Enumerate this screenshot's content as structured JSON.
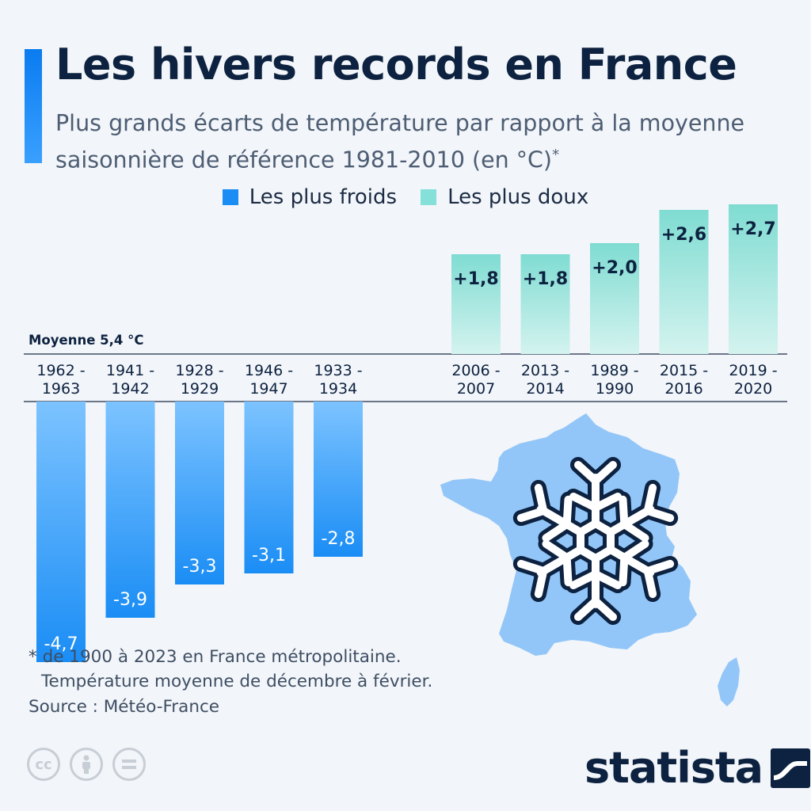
{
  "header": {
    "title": "Les hivers records en France",
    "subtitle": "Plus grands écarts de température par rapport à la moyenne saisonnière de référence 1981-2010 (en °C)",
    "subtitle_mark": "*"
  },
  "legend": {
    "cold_label": "Les plus froids",
    "warm_label": "Les plus doux"
  },
  "baseline_label": "Moyenne 5,4 °C",
  "footnote": {
    "line1": "* de 1900 à 2023 en France métropolitaine.",
    "line2": "Température moyenne de décembre à février."
  },
  "source": "Source : Météo-France",
  "brand": {
    "name": "statista"
  },
  "colors": {
    "cold": "#1a8df5",
    "cold_light": "#7cc3ff",
    "warm": "#7fdcd2",
    "warm_light": "#d4f3ef",
    "map": "#92c6f8",
    "snowflake_outline": "#0d2240",
    "text_dark": "#0d2240"
  },
  "icons": {
    "map": "france-map-icon",
    "snowflake": "snowflake-icon",
    "cc": "creative-commons-icon",
    "by": "attribution-icon",
    "nd": "no-derivatives-icon",
    "logo_mark": "statista-logo-icon"
  },
  "chart_data": {
    "type": "bar",
    "series": [
      {
        "name": "Les plus froids",
        "categories": [
          "1962-1963",
          "1941-1942",
          "1928-1929",
          "1946-1947",
          "1933-1934"
        ],
        "values": [
          -4.7,
          -3.9,
          -3.3,
          -3.1,
          -2.8
        ],
        "labels": [
          "-4,7",
          "-3,9",
          "-3,3",
          "-3,1",
          "-2,8"
        ]
      },
      {
        "name": "Les plus doux",
        "categories": [
          "2006-2007",
          "2013-2014",
          "1989-1990",
          "2015-2016",
          "2019-2020"
        ],
        "values": [
          1.8,
          1.8,
          2.0,
          2.6,
          2.7
        ],
        "labels": [
          "+1,8",
          "+1,8",
          "+2,0",
          "+2,6",
          "+2,7"
        ]
      }
    ]
  }
}
